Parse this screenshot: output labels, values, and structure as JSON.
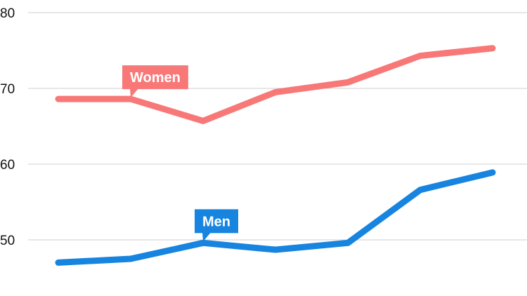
{
  "chart_data": {
    "type": "line",
    "title": "",
    "xlabel": "",
    "ylabel": "",
    "x": [
      1,
      2,
      3,
      4,
      5,
      6,
      7
    ],
    "ylim": [
      45,
      80
    ],
    "yticks": [
      50,
      60,
      70,
      80
    ],
    "grid": true,
    "series": [
      {
        "name": "Women",
        "color": "#f87878",
        "values": [
          68.6,
          68.6,
          65.7,
          69.5,
          70.8,
          74.3,
          75.3
        ]
      },
      {
        "name": "Men",
        "color": "#1784e0",
        "values": [
          47.0,
          47.5,
          49.6,
          48.7,
          49.6,
          56.6,
          58.9
        ]
      }
    ],
    "callouts": [
      {
        "series": "Women",
        "text": "Women",
        "color": "#f87878",
        "anchor_x": 2
      },
      {
        "series": "Men",
        "text": "Men",
        "color": "#1784e0",
        "anchor_x": 3
      }
    ]
  }
}
